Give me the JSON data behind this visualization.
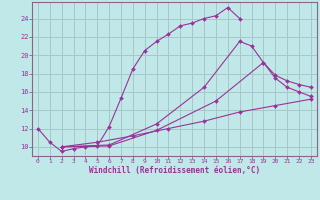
{
  "xlabel": "Windchill (Refroidissement éolien,°C)",
  "bg_color": "#c0e8e8",
  "grid_color": "#a8c8c8",
  "line_color": "#993399",
  "spine_color": "#886688",
  "xlim": [
    -0.5,
    23.5
  ],
  "ylim": [
    9.0,
    25.8
  ],
  "xticks": [
    0,
    1,
    2,
    3,
    4,
    5,
    6,
    7,
    8,
    9,
    10,
    11,
    12,
    13,
    14,
    15,
    16,
    17,
    18,
    19,
    20,
    21,
    22,
    23
  ],
  "yticks": [
    10,
    12,
    14,
    16,
    18,
    20,
    22,
    24
  ],
  "curves": [
    {
      "x": [
        0,
        1,
        2,
        3,
        4,
        5,
        6,
        7,
        8,
        9,
        10,
        11,
        12,
        13,
        14,
        15,
        16,
        17
      ],
      "y": [
        12.0,
        10.5,
        9.5,
        9.8,
        10.0,
        10.1,
        12.2,
        15.3,
        18.5,
        20.5,
        21.5,
        22.3,
        23.2,
        23.5,
        24.0,
        24.3,
        25.2,
        24.0
      ],
      "markers": true
    },
    {
      "x": [
        2,
        6,
        10,
        14,
        17,
        18,
        19,
        20,
        21,
        22,
        23
      ],
      "y": [
        10.0,
        10.2,
        12.5,
        16.5,
        21.5,
        21.0,
        19.2,
        17.5,
        16.5,
        16.0,
        15.5
      ],
      "markers": true
    },
    {
      "x": [
        2,
        6,
        10,
        15,
        19,
        20,
        21,
        22,
        23
      ],
      "y": [
        10.0,
        10.1,
        11.8,
        15.0,
        19.2,
        17.8,
        17.2,
        16.8,
        16.5
      ],
      "markers": true
    },
    {
      "x": [
        2,
        5,
        8,
        11,
        14,
        17,
        20,
        23
      ],
      "y": [
        10.0,
        10.5,
        11.2,
        12.0,
        12.8,
        13.8,
        14.5,
        15.2
      ],
      "markers": true
    }
  ]
}
